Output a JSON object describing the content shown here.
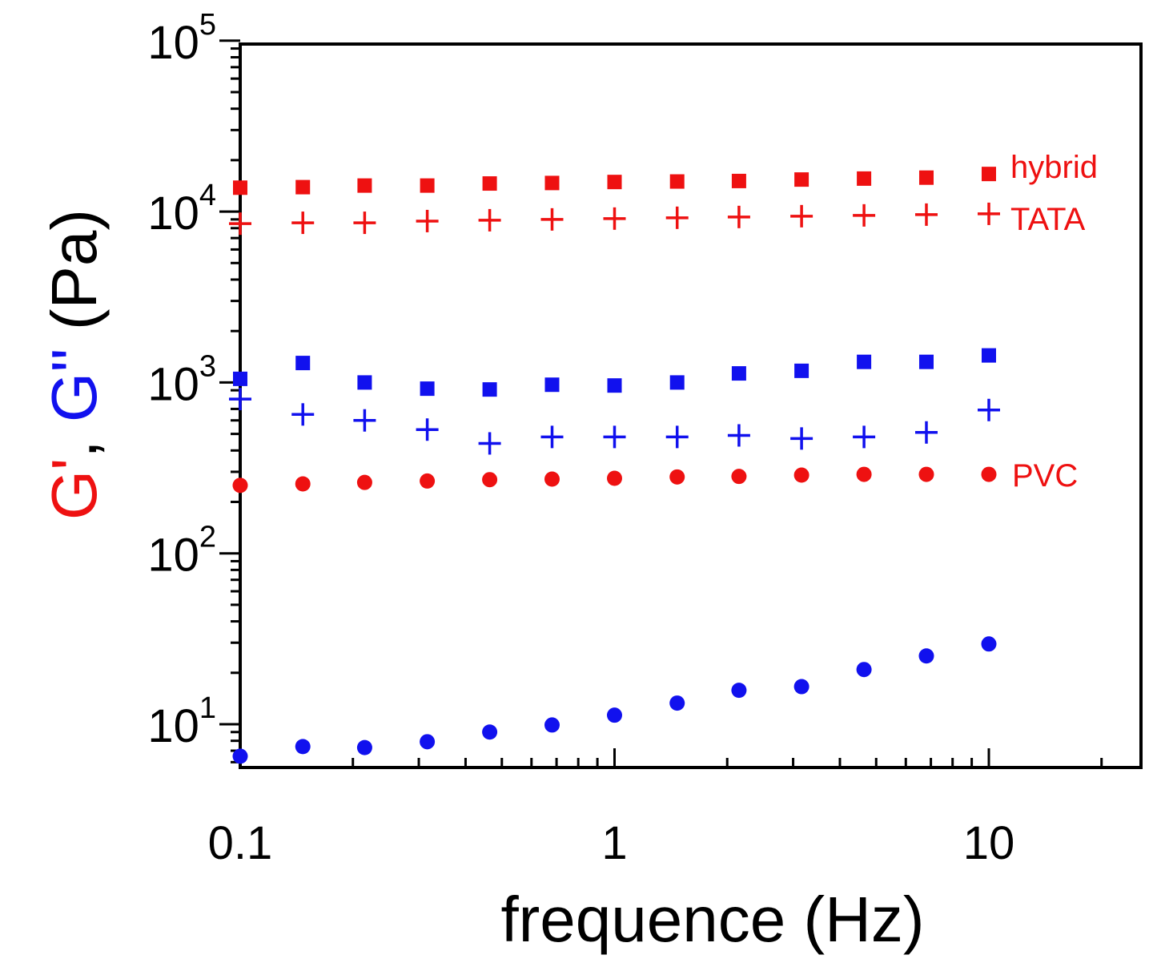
{
  "chart_data": {
    "type": "scatter",
    "x_scale": "log",
    "y_scale": "log",
    "xlim": [
      0.1,
      25
    ],
    "ylim": [
      6,
      100000
    ],
    "x_ticks": [
      {
        "value": 0.1,
        "label": "0.1"
      },
      {
        "value": 1,
        "label": "1"
      },
      {
        "value": 10,
        "label": "10"
      }
    ],
    "y_ticks": [
      {
        "value": 10,
        "base": "10",
        "exp": "1"
      },
      {
        "value": 100,
        "base": "10",
        "exp": "2"
      },
      {
        "value": 1000,
        "base": "10",
        "exp": "3"
      },
      {
        "value": 10000,
        "base": "10",
        "exp": "4"
      },
      {
        "value": 100000,
        "base": "10",
        "exp": "5"
      }
    ],
    "xlabel": "frequence (Hz)",
    "ylabel": {
      "g1": "G'",
      "sep": ",",
      "g2": "G''",
      "unit": "(Pa)",
      "g1_color": "#ee1111",
      "g2_color": "#1111ee"
    },
    "x": [
      0.1,
      0.147,
      0.215,
      0.316,
      0.464,
      0.681,
      1.0,
      1.47,
      2.15,
      3.16,
      4.64,
      6.81,
      10.0
    ],
    "series": [
      {
        "name": "hybrid G'",
        "marker": "square",
        "color": "#ee1111",
        "values": [
          13800,
          13900,
          14200,
          14200,
          14600,
          14700,
          14900,
          15000,
          15100,
          15400,
          15600,
          15800,
          16600
        ]
      },
      {
        "name": "TATA G'",
        "marker": "plus",
        "color": "#ee1111",
        "values": [
          8500,
          8600,
          8600,
          8800,
          8900,
          9000,
          9100,
          9200,
          9300,
          9400,
          9500,
          9600,
          9700
        ]
      },
      {
        "name": "PVC G'",
        "marker": "circle",
        "color": "#ee1111",
        "values": [
          250,
          255,
          260,
          265,
          270,
          272,
          275,
          280,
          282,
          287,
          290,
          290,
          290
        ]
      },
      {
        "name": "hybrid G''",
        "marker": "square",
        "color": "#1111ee",
        "values": [
          1050,
          1300,
          1000,
          920,
          910,
          970,
          960,
          1000,
          1130,
          1170,
          1320,
          1320,
          1440
        ]
      },
      {
        "name": "TATA G''",
        "marker": "plus",
        "color": "#1111ee",
        "values": [
          800,
          650,
          600,
          530,
          440,
          480,
          480,
          480,
          490,
          470,
          480,
          510,
          690
        ]
      },
      {
        "name": "PVC G''",
        "marker": "circle",
        "color": "#1111ee",
        "values": [
          6.5,
          7.4,
          7.3,
          7.9,
          9.0,
          9.9,
          11.3,
          13.3,
          15.8,
          16.6,
          20.9,
          25.1,
          29.5
        ]
      }
    ],
    "annotations": [
      {
        "text": "hybrid",
        "color": "#ee1111"
      },
      {
        "text": "TATA",
        "color": "#ee1111"
      },
      {
        "text": "PVC",
        "color": "#ee1111"
      }
    ]
  }
}
